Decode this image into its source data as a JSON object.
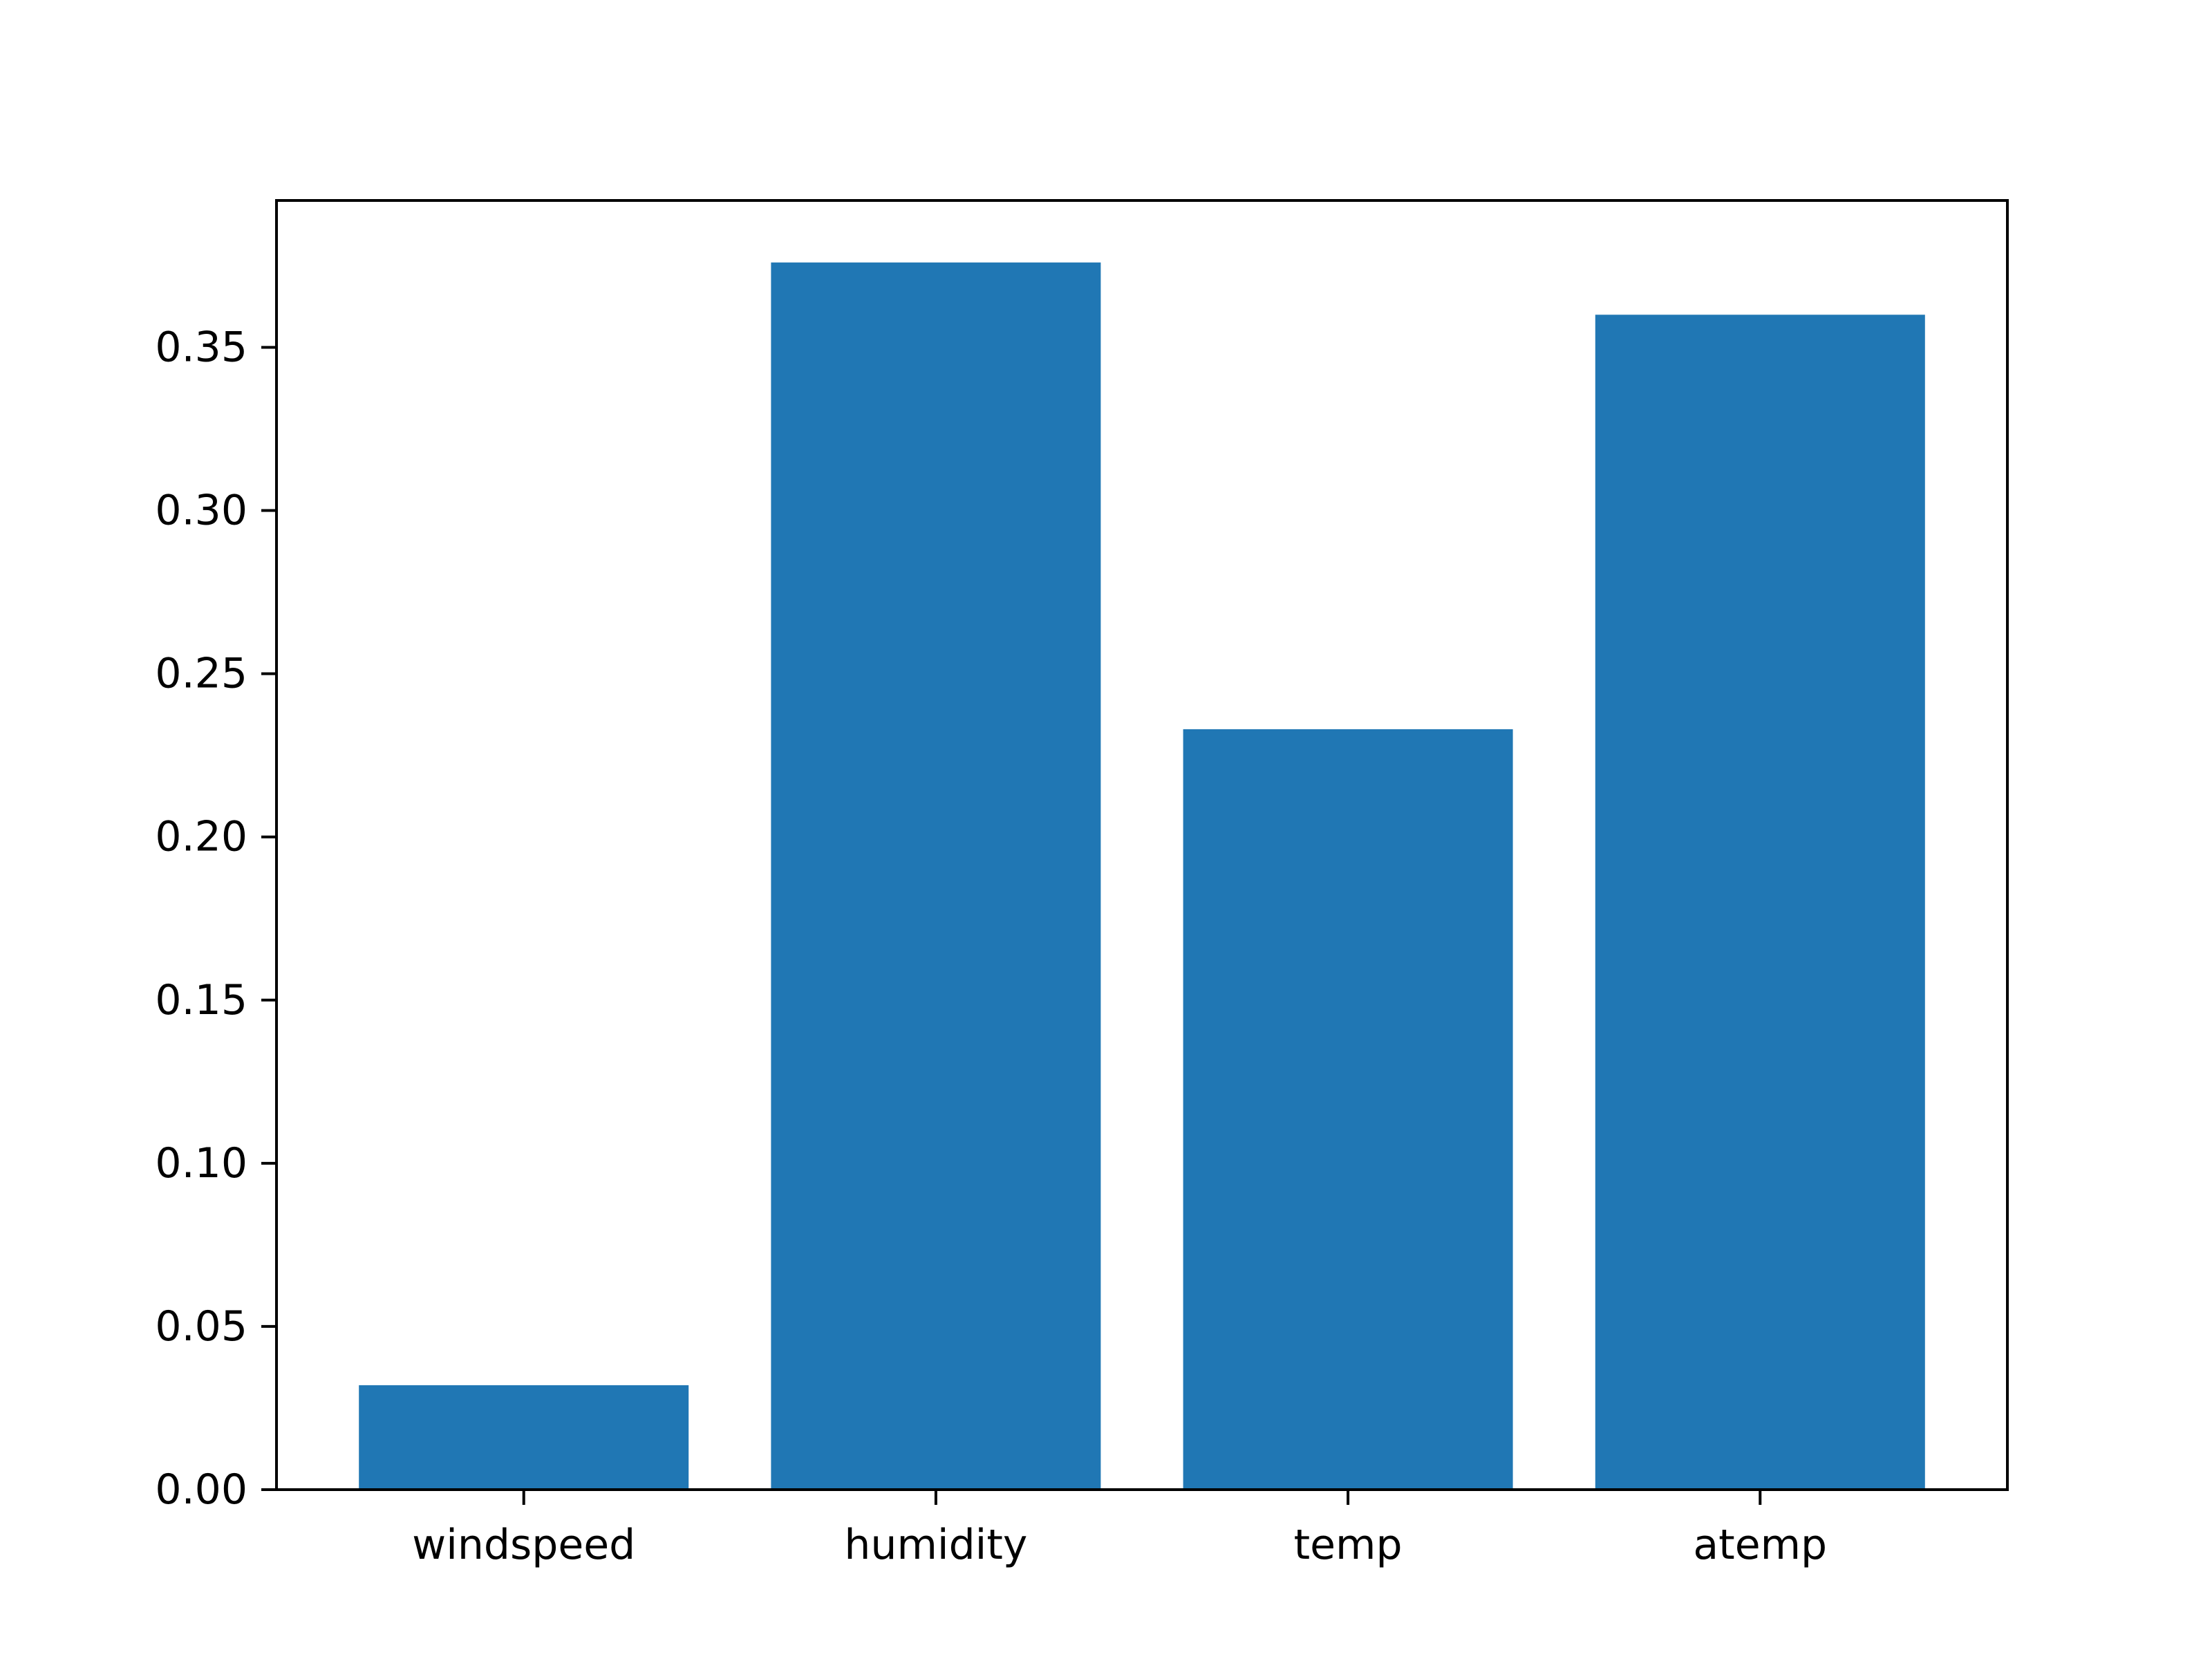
{
  "chart_data": {
    "type": "bar",
    "title": "",
    "xlabel": "",
    "ylabel": "",
    "categories": [
      "windspeed",
      "humidity",
      "temp",
      "atemp"
    ],
    "values": [
      0.032,
      0.376,
      0.233,
      0.36
    ],
    "ylim": [
      0,
      0.395
    ],
    "yticks": [
      0.0,
      0.05,
      0.1,
      0.15,
      0.2,
      0.25,
      0.3,
      0.35
    ],
    "ytick_labels": [
      "0.00",
      "0.05",
      "0.10",
      "0.15",
      "0.20",
      "0.25",
      "0.30",
      "0.35"
    ],
    "bar_color": "#2077b4",
    "grid": false,
    "legend": "none"
  }
}
